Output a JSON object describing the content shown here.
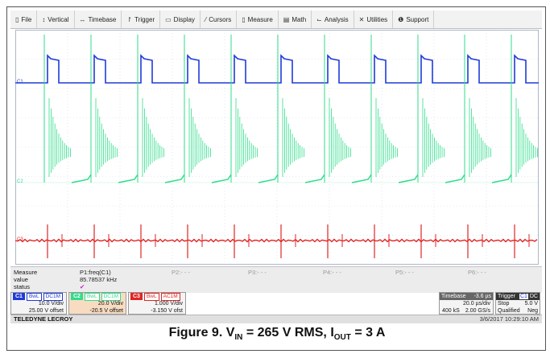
{
  "menu": {
    "items": [
      {
        "name": "file",
        "label": "File",
        "icon": "file-icon",
        "glyph": "▯"
      },
      {
        "name": "vertical",
        "label": "Vertical",
        "icon": "vertical-icon",
        "glyph": "↕"
      },
      {
        "name": "timebase",
        "label": "Timebase",
        "icon": "timebase-icon",
        "glyph": "↔"
      },
      {
        "name": "trigger",
        "label": "Trigger",
        "icon": "trigger-icon",
        "glyph": "↾"
      },
      {
        "name": "display",
        "label": "Display",
        "icon": "display-icon",
        "glyph": "▭"
      },
      {
        "name": "cursors",
        "label": "Cursors",
        "icon": "cursors-icon",
        "glyph": "⁄"
      },
      {
        "name": "measure",
        "label": "Measure",
        "icon": "measure-icon",
        "glyph": "▯"
      },
      {
        "name": "math",
        "label": "Math",
        "icon": "math-icon",
        "glyph": "▤"
      },
      {
        "name": "analysis",
        "label": "Analysis",
        "icon": "analysis-icon",
        "glyph": "⌙"
      },
      {
        "name": "utilities",
        "label": "Utilities",
        "icon": "utilities-icon",
        "glyph": "✕"
      },
      {
        "name": "support",
        "label": "Support",
        "icon": "support-icon",
        "glyph": "❶"
      }
    ]
  },
  "channels_markers": {
    "c1": "C1",
    "c2": "C2",
    "c3": "C3"
  },
  "measure": {
    "row_labels": {
      "measure": "Measure",
      "value": "value",
      "status": "status"
    },
    "p1_label": "P1:freq(C1)",
    "p1_value": "85.78537 kHz",
    "p1_status": "✔",
    "others": [
      "P2:- - -",
      "P3:- - -",
      "P4:- - -",
      "P5:- - -",
      "P6:- - -"
    ]
  },
  "channels": [
    {
      "tag": "C1",
      "bw": "BwL",
      "coupling": "DC1M",
      "vdiv": "10.0 V/div",
      "offset": "25.00 V offset",
      "color": "#1f3bd8"
    },
    {
      "tag": "C2",
      "bw": "BwL",
      "coupling": "DC1M",
      "vdiv": "20.0 V/div",
      "offset": "-20.5 V offset",
      "color": "#2fdc8a"
    },
    {
      "tag": "C3",
      "bw": "BwL",
      "coupling": "AC1M",
      "vdiv": "1.000 V/div",
      "offset": "-3.150 V ofst",
      "color": "#e02424"
    }
  ],
  "timebase": {
    "label": "Timebase",
    "delay": "-3.6 µs",
    "tdiv": "20.0 µs/div",
    "samples": "400 kS",
    "rate": "2.00 GS/s"
  },
  "trigger": {
    "label": "Trigger",
    "source": "C1",
    "coupling": "DC",
    "mode": "Stop",
    "level": "5.0 V",
    "qual": "Qualified",
    "slope": "Neg"
  },
  "brand": {
    "name": "TELEDYNE LECROY",
    "timestamp": "3/6/2017 10:29:10 AM"
  },
  "caption": {
    "prefix": "Figure 9.  V",
    "vin_sub": "IN",
    "mid": " = 265 V RMS, I",
    "iout_sub": "OUT",
    "suffix": " = 3 A"
  },
  "colors": {
    "c1": "#1f3bd8",
    "c2": "#2fdc8a",
    "c3": "#e02424",
    "grid": "#cfd8e6"
  }
}
